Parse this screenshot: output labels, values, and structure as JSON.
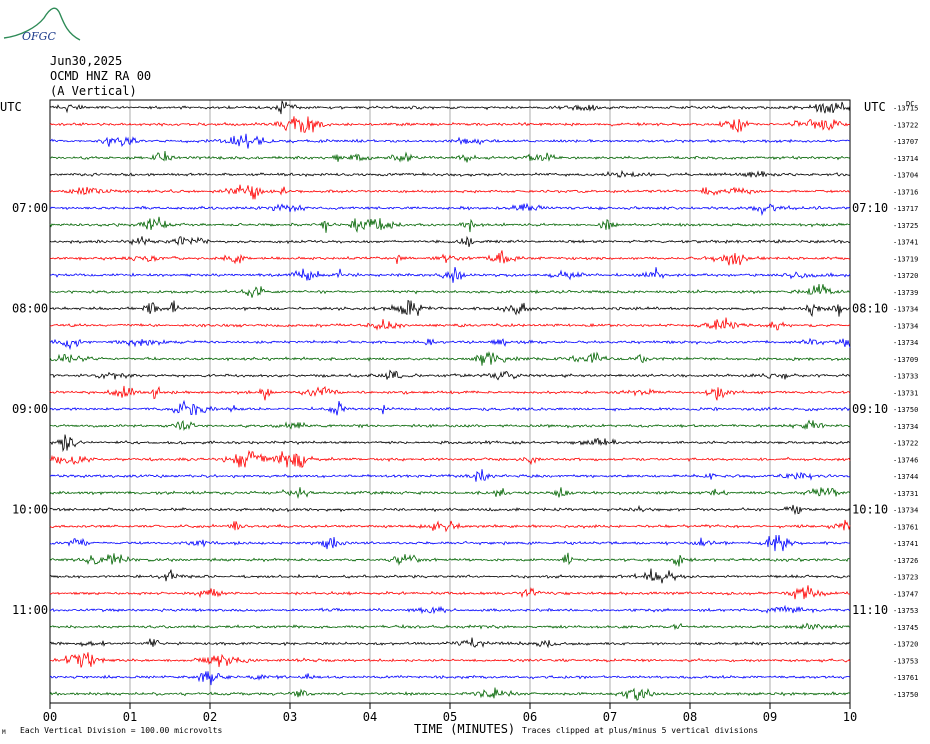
{
  "header": {
    "logo_text": "OFGC",
    "date": "Jun30,2025",
    "station": "OCMD HNZ RA 00",
    "component": "(A Vertical)",
    "left_timezone": "UTC",
    "right_timezone": "UTC",
    "corner_mark": "DC"
  },
  "footer": {
    "scale_note": "Each Vertical Division =  100.00 microvolts",
    "xlabel": "TIME (MINUTES)",
    "clip_note": "Traces clipped at plus/minus 5 vertical divisions",
    "corner_mark": "M"
  },
  "colors": {
    "trace_cycle": [
      "#000000",
      "#ff0000",
      "#0000ff",
      "#006400"
    ],
    "grid": "#000000"
  },
  "chart_data": {
    "type": "line",
    "title": "",
    "xlabel": "TIME (MINUTES)",
    "xlim": [
      0,
      10
    ],
    "x_ticks": [
      "00",
      "01",
      "02",
      "03",
      "04",
      "05",
      "06",
      "07",
      "08",
      "09",
      "10"
    ],
    "minutes_per_line": 10,
    "trace_count": 36,
    "left_time_labels": [
      {
        "line": 6,
        "label": "07:00"
      },
      {
        "line": 12,
        "label": "08:00"
      },
      {
        "line": 18,
        "label": "09:00"
      },
      {
        "line": 24,
        "label": "10:00"
      },
      {
        "line": 30,
        "label": "11:00"
      }
    ],
    "right_time_labels": [
      {
        "line": 6,
        "label": "07:10"
      },
      {
        "line": 12,
        "label": "08:10"
      },
      {
        "line": 18,
        "label": "09:10"
      },
      {
        "line": 24,
        "label": "10:10"
      },
      {
        "line": 30,
        "label": "11:10"
      }
    ],
    "trace_offsets": [
      "-13715",
      "-13722",
      "-13707",
      "-13714",
      "-13704",
      "-13716",
      "-13717",
      "-13725",
      "-13741",
      "-13719",
      "-13720",
      "-13739",
      "-13734",
      "-13734",
      "-13734",
      "-13709",
      "-13733",
      "-13731",
      "-13750",
      "-13734",
      "-13722",
      "-13746",
      "-13744",
      "-13731",
      "-13734",
      "-13761",
      "-13741",
      "-13726",
      "-13723",
      "-13747",
      "-13753",
      "-13745",
      "-13720",
      "-13753",
      "-13761",
      "-13750"
    ]
  }
}
